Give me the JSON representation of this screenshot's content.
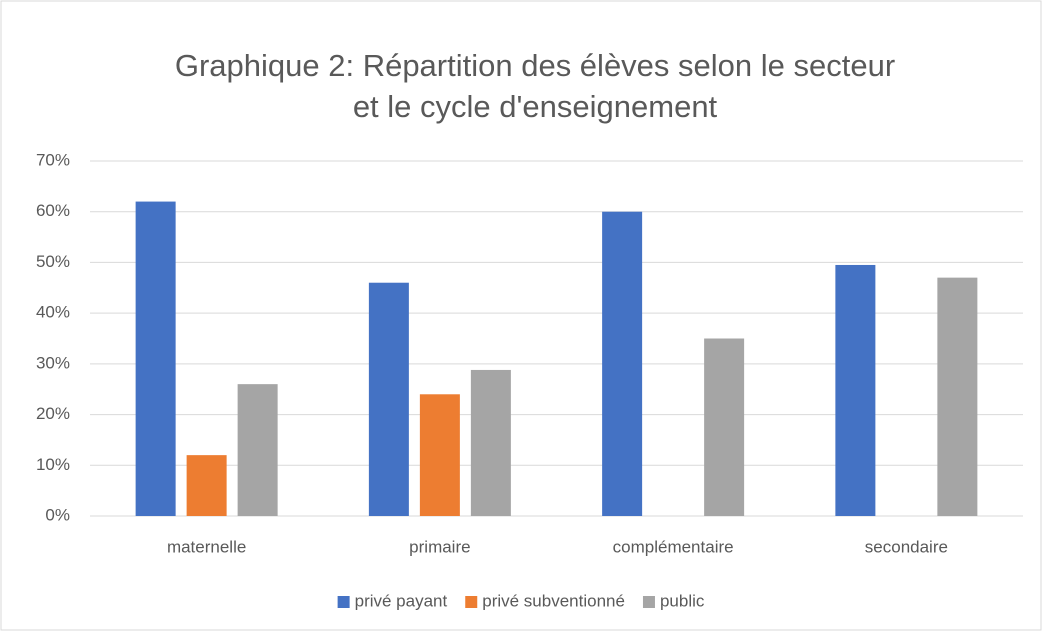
{
  "chart_data": {
    "type": "bar",
    "title": [
      "Graphique 2: Répartition des élèves selon le secteur",
      "et le cycle d'enseignement"
    ],
    "categories": [
      "maternelle",
      "primaire",
      "complémentaire",
      "secondaire"
    ],
    "series": [
      {
        "name": "privé payant",
        "color": "#4472c4",
        "values": [
          62,
          46,
          60,
          49.5
        ]
      },
      {
        "name": "privé subventionné",
        "color": "#ed7d31",
        "values": [
          12,
          24,
          null,
          null
        ]
      },
      {
        "name": "public",
        "color": "#a5a5a5",
        "values": [
          26,
          28.8,
          35,
          47
        ]
      }
    ],
    "ylim": [
      0,
      70
    ],
    "yticks": [
      {
        "value": 0,
        "label": "0%"
      },
      {
        "value": 10,
        "label": "10%"
      },
      {
        "value": 20,
        "label": "20%"
      },
      {
        "value": 30,
        "label": "30%"
      },
      {
        "value": 40,
        "label": "40%"
      },
      {
        "value": 50,
        "label": "50%"
      },
      {
        "value": 60,
        "label": "60%"
      },
      {
        "value": 70,
        "label": "70%"
      }
    ],
    "grid": true,
    "legend": "bottom"
  }
}
